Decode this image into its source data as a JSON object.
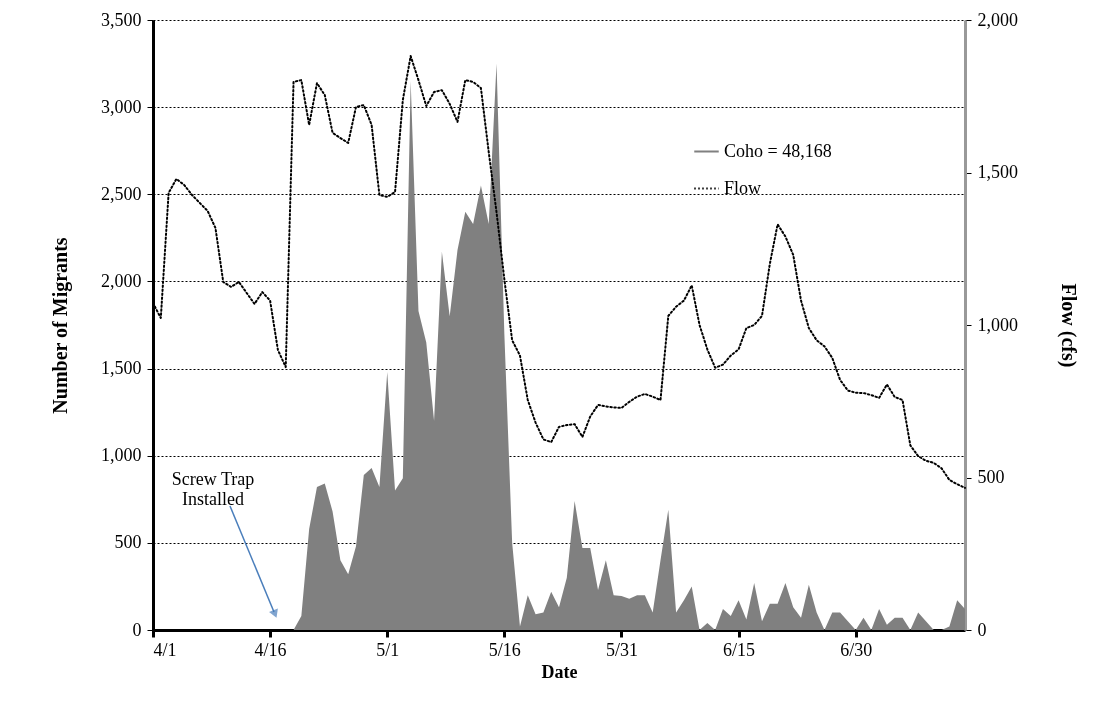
{
  "chart_data": {
    "type": "area",
    "xlabel": "Date",
    "ylabel": "Number of Migrants",
    "y2label": "Flow  (cfs)",
    "x": [
      "--04-01",
      "--04-02",
      "--04-03",
      "--04-04",
      "--04-05",
      "--04-06",
      "--04-07",
      "--04-08",
      "--04-09",
      "--04-10",
      "--04-11",
      "--04-12",
      "--04-13",
      "--04-14",
      "--04-15",
      "--04-16",
      "--04-17",
      "--04-18",
      "--04-19",
      "--04-20",
      "--04-21",
      "--04-22",
      "--04-23",
      "--04-24",
      "--04-25",
      "--04-26",
      "--04-27",
      "--04-28",
      "--04-29",
      "--04-30",
      "--05-01",
      "--05-02",
      "--05-03",
      "--05-04",
      "--05-05",
      "--05-06",
      "--05-07",
      "--05-08",
      "--05-09",
      "--05-10",
      "--05-11",
      "--05-12",
      "--05-13",
      "--05-14",
      "--05-15",
      "--05-16",
      "--05-17",
      "--05-18",
      "--05-19",
      "--05-20",
      "--05-21",
      "--05-22",
      "--05-23",
      "--05-24",
      "--05-25",
      "--05-26",
      "--05-27",
      "--05-28",
      "--05-29",
      "--05-30",
      "--05-31",
      "--06-01",
      "--06-02",
      "--06-03",
      "--06-04",
      "--06-05",
      "--06-06",
      "--06-07",
      "--06-08",
      "--06-09",
      "--06-10",
      "--06-11",
      "--06-12",
      "--06-13",
      "--06-14",
      "--06-15",
      "--06-16",
      "--06-17",
      "--06-18",
      "--06-19",
      "--06-20",
      "--06-21",
      "--06-22",
      "--06-23",
      "--06-24",
      "--06-25",
      "--06-26",
      "--06-27",
      "--06-28",
      "--06-29",
      "--06-30",
      "--07-01",
      "--07-02",
      "--07-03",
      "--07-04",
      "--07-05",
      "--07-06",
      "--07-07",
      "--07-08",
      "--07-09",
      "--07-10",
      "--07-11",
      "--07-12",
      "--07-13",
      "--07-14"
    ],
    "series": [
      {
        "name": "Coho = 48,168",
        "color": "#808080",
        "values": [
          null,
          null,
          null,
          null,
          null,
          null,
          null,
          null,
          null,
          null,
          null,
          null,
          null,
          null,
          null,
          null,
          null,
          null,
          0,
          80,
          580,
          820,
          840,
          680,
          400,
          320,
          480,
          890,
          930,
          820,
          1480,
          800,
          870,
          3150,
          1830,
          1650,
          1200,
          2170,
          1800,
          2180,
          2400,
          2330,
          2550,
          2330,
          3250,
          1700,
          500,
          20,
          200,
          90,
          100,
          220,
          130,
          300,
          740,
          470,
          470,
          230,
          400,
          200,
          195,
          180,
          200,
          200,
          100,
          400,
          690,
          100,
          170,
          250,
          0,
          40,
          0,
          120,
          80,
          170,
          60,
          270,
          50,
          150,
          150,
          270,
          130,
          70,
          260,
          100,
          0,
          100,
          100,
          50,
          0,
          70,
          0,
          120,
          30,
          70,
          70,
          0,
          100,
          50,
          0,
          0,
          20,
          170,
          120
        ]
      },
      {
        "name": "Flow",
        "type": "line",
        "axis": "y2",
        "color": "#000000",
        "line_style": "dotted",
        "values": [
          1072,
          1023,
          1433,
          1479,
          1459,
          1426,
          1400,
          1374,
          1318,
          1141,
          1125,
          1141,
          1105,
          1069,
          1108,
          1080,
          918,
          862,
          1797,
          1803,
          1656,
          1793,
          1754,
          1630,
          1613,
          1597,
          1715,
          1721,
          1656,
          1426,
          1420,
          1436,
          1738,
          1882,
          1803,
          1718,
          1764,
          1770,
          1725,
          1666,
          1803,
          1797,
          1777,
          1567,
          1370,
          1150,
          950,
          900,
          754,
          680,
          625,
          616,
          666,
          672,
          675,
          633,
          700,
          738,
          733,
          730,
          728,
          748,
          765,
          774,
          765,
          754,
          1030,
          1060,
          1080,
          1130,
          1000,
          920,
          860,
          870,
          900,
          920,
          990,
          1000,
          1030,
          1200,
          1330,
          1290,
          1230,
          1080,
          990,
          950,
          930,
          892,
          820,
          785,
          778,
          777,
          770,
          761,
          805,
          764,
          754,
          605,
          570,
          555,
          548,
          530,
          492,
          478,
          466
        ]
      }
    ],
    "xlim": [
      "--04-01",
      "--07-14"
    ],
    "xticks": [
      {
        "value": "--04-01",
        "label": "4/1"
      },
      {
        "value": "--04-16",
        "label": "4/16"
      },
      {
        "value": "--05-01",
        "label": "5/1"
      },
      {
        "value": "--05-16",
        "label": "5/16"
      },
      {
        "value": "--05-31",
        "label": "5/31"
      },
      {
        "value": "--06-15",
        "label": "6/15"
      },
      {
        "value": "--06-30",
        "label": "6/30"
      }
    ],
    "ylim": [
      0,
      3500
    ],
    "yticks": [
      0,
      500,
      {
        "value": 1000,
        "label": "1,000"
      },
      {
        "value": 1500,
        "label": "1,500"
      },
      {
        "value": 2000,
        "label": "2,000"
      },
      {
        "value": 2500,
        "label": "2,500"
      },
      {
        "value": 3000,
        "label": "3,000"
      },
      {
        "value": 3500,
        "label": "3,500"
      }
    ],
    "y2lim": [
      0,
      2000
    ],
    "y2ticks": [
      0,
      500,
      {
        "value": 1000,
        "label": "1,000"
      },
      {
        "value": 1500,
        "label": "1,500"
      },
      {
        "value": 2000,
        "label": "2,000"
      }
    ],
    "grid": "y",
    "legend": "top right",
    "marker": "none",
    "annotations": [
      "Screw Trap\nInstalled"
    ]
  }
}
